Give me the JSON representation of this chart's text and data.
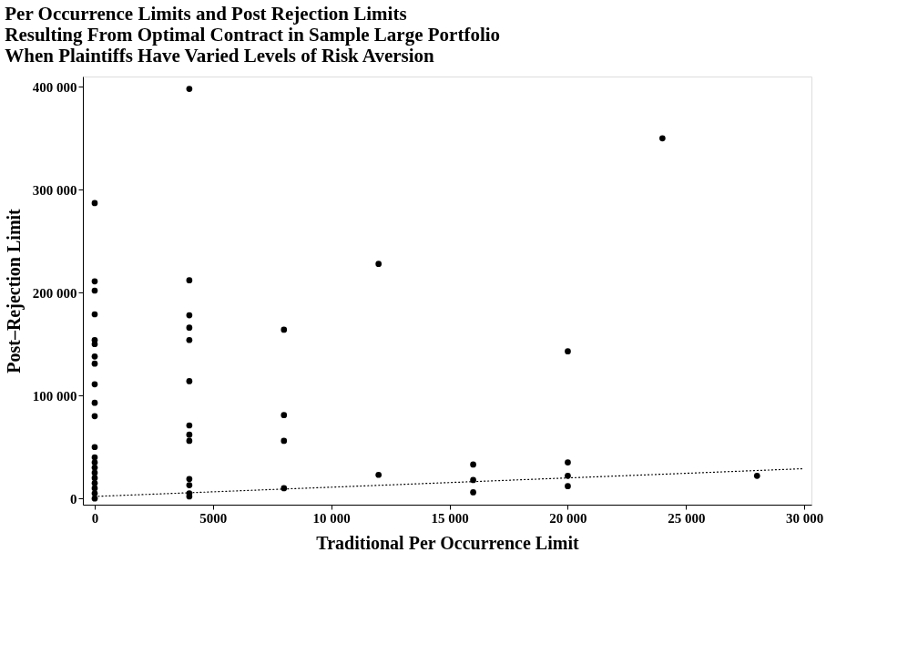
{
  "chart_data": {
    "type": "scatter",
    "title": [
      "Per Occurrence Limits and Post Rejection Limits",
      "Resulting From Optimal Contract in Sample Large Portfolio",
      "When Plaintiffs Have Varied Levels of Risk Aversion"
    ],
    "xlabel": "Traditional Per Occurrence Limit",
    "ylabel": "Post–Rejection Limit",
    "series": [
      {
        "color": "#000000",
        "marker": "circle",
        "x": [
          0,
          0,
          0,
          0,
          0,
          0,
          0,
          0,
          0,
          0,
          0,
          0,
          0,
          0,
          0,
          0,
          0,
          0,
          0,
          0,
          0,
          4000,
          4000,
          4000,
          4000,
          4000,
          4000,
          4000,
          4000,
          4000,
          4000,
          4000,
          4000,
          4000,
          8000,
          8000,
          8000,
          8000,
          12000,
          12000,
          16000,
          16000,
          16000,
          20000,
          20000,
          20000,
          20000,
          24000,
          28000
        ],
        "values": [
          287000,
          211000,
          202000,
          179000,
          154000,
          150000,
          138000,
          131000,
          111000,
          93000,
          80000,
          50000,
          40000,
          35000,
          30000,
          25000,
          20000,
          15000,
          10000,
          5000,
          0,
          398000,
          212000,
          178000,
          166000,
          154000,
          114000,
          71000,
          62000,
          56000,
          19000,
          13000,
          5000,
          2000,
          164000,
          81000,
          56000,
          10000,
          228000,
          23000,
          33000,
          18000,
          6000,
          143000,
          35000,
          22000,
          12000,
          350000,
          22000
        ]
      },
      {
        "type": "line",
        "color": "#000000",
        "line_style": "dotted",
        "x": [
          0,
          30000
        ],
        "values": [
          2000,
          29000
        ]
      }
    ],
    "xlim": [
      -500,
      30300
    ],
    "ylim": [
      -6000,
      410000
    ],
    "xticks": [
      0,
      5000,
      {
        "value": 10000,
        "label": "10 000"
      },
      {
        "value": 15000,
        "label": "15 000"
      },
      {
        "value": 20000,
        "label": "20 000"
      },
      {
        "value": 25000,
        "label": "25 000"
      },
      {
        "value": 30000,
        "label": "30 000"
      }
    ],
    "yticks": [
      0,
      {
        "value": 100000,
        "label": "100 000"
      },
      {
        "value": 200000,
        "label": "200 000"
      },
      {
        "value": 300000,
        "label": "300 000"
      },
      {
        "value": 400000,
        "label": "400 000"
      }
    ],
    "grid": false
  }
}
